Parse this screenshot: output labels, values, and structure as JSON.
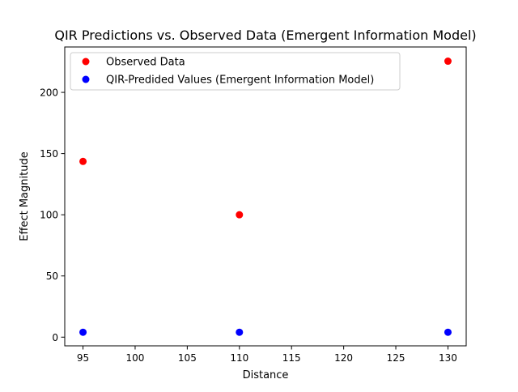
{
  "chart_data": {
    "type": "scatter",
    "title": "QIR Predictions vs. Observed Data (Emergent Information Model)",
    "xlabel": "Distance",
    "ylabel": "Effect Magnitude",
    "xlim": [
      93.25,
      131.75
    ],
    "ylim": [
      -7.1,
      237.1
    ],
    "xticks": [
      95,
      100,
      105,
      110,
      115,
      120,
      125,
      130
    ],
    "xtick_labels": [
      "95",
      "100",
      "105",
      "110",
      "115",
      "120",
      "125",
      "130"
    ],
    "yticks": [
      0,
      50,
      100,
      150,
      200
    ],
    "ytick_labels": [
      "0",
      "50",
      "100",
      "150",
      "200"
    ],
    "grid": false,
    "legend_position": "upper-left",
    "series": [
      {
        "name": "Observed Data",
        "color": "#ff0000",
        "x": [
          95,
          110,
          130
        ],
        "y": [
          143.6,
          100,
          225.5
        ]
      },
      {
        "name": "QIR-Predided Values (Emergent Information Model)",
        "color": "#0000ff",
        "x": [
          95,
          110,
          130
        ],
        "y": [
          4,
          4,
          4
        ]
      }
    ]
  }
}
